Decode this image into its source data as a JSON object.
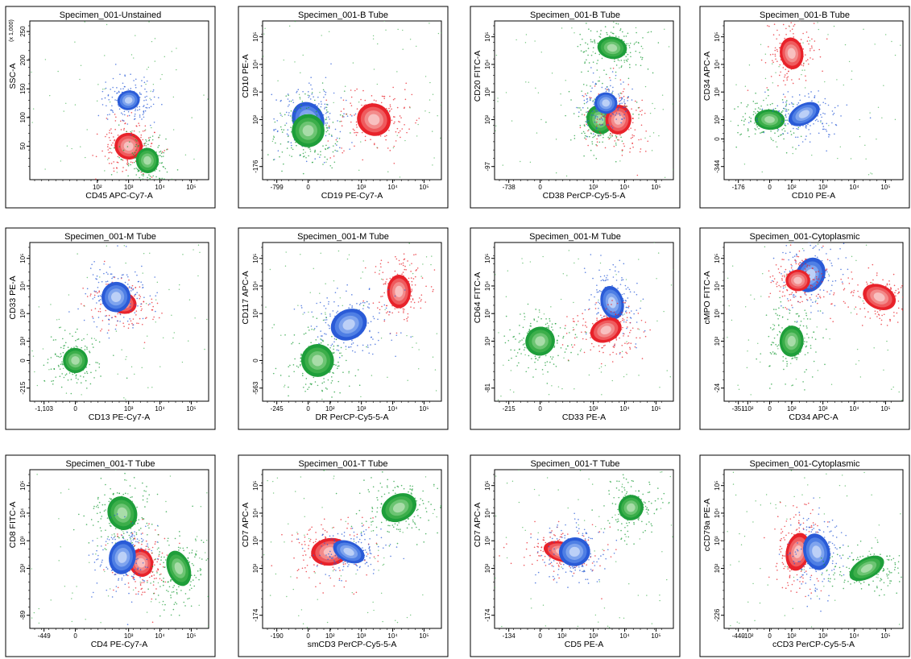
{
  "chart_data": [
    {
      "type": "scatter",
      "title": "Specimen_001-Unstained",
      "xlabel": "CD45 APC-Cy7-A",
      "ylabel": "SSC-A",
      "x_scale": "biexponential",
      "y_scale": "linear (x 1,000)",
      "xticks": [
        "10²",
        "10³",
        "10⁴",
        "10⁵"
      ],
      "yticks": [
        "50",
        "100",
        "150",
        "200",
        "250"
      ],
      "y_multiplier": "(x 1,000)",
      "populations": [
        {
          "color": "#e8222a",
          "x_center": "10³",
          "y_center": 50
        },
        {
          "color": "#2a5bd7",
          "x_center": "10³",
          "y_center": 130
        },
        {
          "color": "#1e9e3a",
          "x_center": "10^3.6",
          "y_center": 25
        }
      ]
    },
    {
      "type": "scatter",
      "title": "Specimen_001-B Tube",
      "xlabel": "CD19 PE-Cy7-A",
      "ylabel": "CD10 PE-A",
      "xticks": [
        "-799",
        "0",
        "10³",
        "10⁴",
        "10⁵"
      ],
      "yticks": [
        "-176",
        "10²",
        "10³",
        "10⁴",
        "10⁵"
      ],
      "populations": [
        {
          "color": "#2a5bd7",
          "x_center": "0",
          "y_center": "10²"
        },
        {
          "color": "#1e9e3a",
          "x_center": "0",
          "y_center": "10^1.6"
        },
        {
          "color": "#e8222a",
          "x_center": "10^3.4",
          "y_center": "10²"
        }
      ]
    },
    {
      "type": "scatter",
      "title": "Specimen_001-B Tube",
      "xlabel": "CD38 PerCP-Cy5-5-A",
      "ylabel": "CD20 FITC-A",
      "xticks": [
        "-738",
        "0",
        "10³",
        "10⁴",
        "10⁵"
      ],
      "yticks": [
        "-97",
        "10²",
        "10³",
        "10⁴",
        "10⁵"
      ],
      "populations": [
        {
          "color": "#1e9e3a",
          "x_center": "10^3.2",
          "y_center": "10²"
        },
        {
          "color": "#e8222a",
          "x_center": "10^3.8",
          "y_center": "10²"
        },
        {
          "color": "#2a5bd7",
          "x_center": "10^3.4",
          "y_center": "10^2.6"
        },
        {
          "color": "#1e9e3a",
          "x_center": "10^3.6",
          "y_center": "10^4.6"
        }
      ]
    },
    {
      "type": "scatter",
      "title": "Specimen_001-B Tube",
      "xlabel": "CD10 PE-A",
      "ylabel": "CD34 APC-A",
      "xticks": [
        "-176",
        "0",
        "10²",
        "10³",
        "10⁴",
        "10⁵"
      ],
      "yticks": [
        "-344",
        "0",
        "10²",
        "10³",
        "10⁴",
        "10⁵"
      ],
      "populations": [
        {
          "color": "#e8222a",
          "x_center": "10²",
          "y_center": "10^4.4"
        },
        {
          "color": "#1e9e3a",
          "x_center": "0",
          "y_center": "10²"
        },
        {
          "color": "#2a5bd7",
          "x_center": "10^2.4",
          "y_center": "10^2.2"
        }
      ]
    },
    {
      "type": "scatter",
      "title": "Specimen_001-M Tube",
      "xlabel": "CD13 PE-Cy7-A",
      "ylabel": "CD33 PE-A",
      "xticks": [
        "-1,103",
        "0",
        "10³",
        "10⁴",
        "10⁵"
      ],
      "yticks": [
        "-215",
        "0",
        "10²",
        "10³",
        "10⁴",
        "10⁵"
      ],
      "populations": [
        {
          "color": "#e8222a",
          "x_center": "10^2.8",
          "y_center": "10^3.4"
        },
        {
          "color": "#2a5bd7",
          "x_center": "10^2.6",
          "y_center": "10^3.6"
        },
        {
          "color": "#1e9e3a",
          "x_center": "0",
          "y_center": "0"
        }
      ]
    },
    {
      "type": "scatter",
      "title": "Specimen_001-M Tube",
      "xlabel": "DR PerCP-Cy5-5-A",
      "ylabel": "CD117 APC-A",
      "xticks": [
        "-245",
        "0",
        "10²",
        "10³",
        "10⁴",
        "10⁵"
      ],
      "yticks": [
        "-563",
        "0",
        "10³",
        "10⁴",
        "10⁵"
      ],
      "populations": [
        {
          "color": "#e8222a",
          "x_center": "10^4.2",
          "y_center": "10^3.8"
        },
        {
          "color": "#2a5bd7",
          "x_center": "10^2.6",
          "y_center": "10^2.6"
        },
        {
          "color": "#1e9e3a",
          "x_center": "10^1.6",
          "y_center": "0"
        }
      ]
    },
    {
      "type": "scatter",
      "title": "Specimen_001-M Tube",
      "xlabel": "CD33 PE-A",
      "ylabel": "CD64 FITC-A",
      "xticks": [
        "-215",
        "0",
        "10³",
        "10⁴",
        "10⁵"
      ],
      "yticks": [
        "-81",
        "10²",
        "10³",
        "10⁴",
        "10⁵"
      ],
      "populations": [
        {
          "color": "#2a5bd7",
          "x_center": "10^3.6",
          "y_center": "10^3.4"
        },
        {
          "color": "#e8222a",
          "x_center": "10^3.4",
          "y_center": "10^2.4"
        },
        {
          "color": "#1e9e3a",
          "x_center": "0",
          "y_center": "10²"
        }
      ]
    },
    {
      "type": "scatter",
      "title": "Specimen_001-Cytoplasmic",
      "xlabel": "CD34 APC-A",
      "ylabel": "cMPO FITC-A",
      "xticks": [
        "-351",
        "-10²",
        "0",
        "10²",
        "10³",
        "10⁴",
        "10⁵"
      ],
      "yticks": [
        "-24",
        "10²",
        "10³",
        "10⁴",
        "10⁵"
      ],
      "populations": [
        {
          "color": "#2a5bd7",
          "x_center": "10^2.6",
          "y_center": "10^4.4"
        },
        {
          "color": "#e8222a",
          "x_center": "10^2.2",
          "y_center": "10^4.2"
        },
        {
          "color": "#e8222a",
          "x_center": "10^4.8",
          "y_center": "10^3.6"
        },
        {
          "color": "#1e9e3a",
          "x_center": "10²",
          "y_center": "10²"
        }
      ]
    },
    {
      "type": "scatter",
      "title": "Specimen_001-T Tube",
      "xlabel": "CD4 PE-Cy7-A",
      "ylabel": "CD8 FITC-A",
      "xticks": [
        "-449",
        "0",
        "10³",
        "10⁴",
        "10⁵"
      ],
      "yticks": [
        "-89",
        "10²",
        "10³",
        "10⁴",
        "10⁵"
      ],
      "populations": [
        {
          "color": "#1e9e3a",
          "x_center": "10^2.8",
          "y_center": "10⁴"
        },
        {
          "color": "#e8222a",
          "x_center": "10^3.4",
          "y_center": "10^2.2"
        },
        {
          "color": "#2a5bd7",
          "x_center": "10^2.8",
          "y_center": "10^2.4"
        },
        {
          "color": "#1e9e3a",
          "x_center": "10^4.6",
          "y_center": "10²"
        }
      ]
    },
    {
      "type": "scatter",
      "title": "Specimen_001-T Tube",
      "xlabel": "smCD3 PerCP-Cy5-5-A",
      "ylabel": "CD7 APC-A",
      "xticks": [
        "-190",
        "0",
        "10²",
        "10³",
        "10⁴",
        "10⁵"
      ],
      "yticks": [
        "-174",
        "10²",
        "10³",
        "10⁴",
        "10⁵"
      ],
      "populations": [
        {
          "color": "#1e9e3a",
          "x_center": "10^4.2",
          "y_center": "10^4.2"
        },
        {
          "color": "#e8222a",
          "x_center": "10²",
          "y_center": "10^2.6"
        },
        {
          "color": "#2a5bd7",
          "x_center": "10^2.6",
          "y_center": "10^2.6"
        }
      ]
    },
    {
      "type": "scatter",
      "title": "Specimen_001-T Tube",
      "xlabel": "CD5 PE-A",
      "ylabel": "CD7 APC-A",
      "xticks": [
        "-134",
        "0",
        "10²",
        "10³",
        "10⁴",
        "10⁵"
      ],
      "yticks": [
        "-174",
        "10²",
        "10³",
        "10⁴",
        "10⁵"
      ],
      "populations": [
        {
          "color": "#1e9e3a",
          "x_center": "10^4.2",
          "y_center": "10^4.2"
        },
        {
          "color": "#e8222a",
          "x_center": "10²",
          "y_center": "10^2.6"
        },
        {
          "color": "#2a5bd7",
          "x_center": "10^2.4",
          "y_center": "10^2.6"
        }
      ]
    },
    {
      "type": "scatter",
      "title": "Specimen_001-Cytoplasmic",
      "xlabel": "cCD3 PerCP-Cy5-5-A",
      "ylabel": "cCD79a PE-A",
      "xticks": [
        "-440",
        "-10²",
        "0",
        "10²",
        "10³",
        "10⁴",
        "10⁵"
      ],
      "yticks": [
        "-226",
        "10²",
        "10³",
        "10⁴",
        "10⁵"
      ],
      "populations": [
        {
          "color": "#e8222a",
          "x_center": "10^2.2",
          "y_center": "10^2.6"
        },
        {
          "color": "#2a5bd7",
          "x_center": "10^2.8",
          "y_center": "10^2.6"
        },
        {
          "color": "#1e9e3a",
          "x_center": "10^4.4",
          "y_center": "10²"
        }
      ]
    }
  ]
}
